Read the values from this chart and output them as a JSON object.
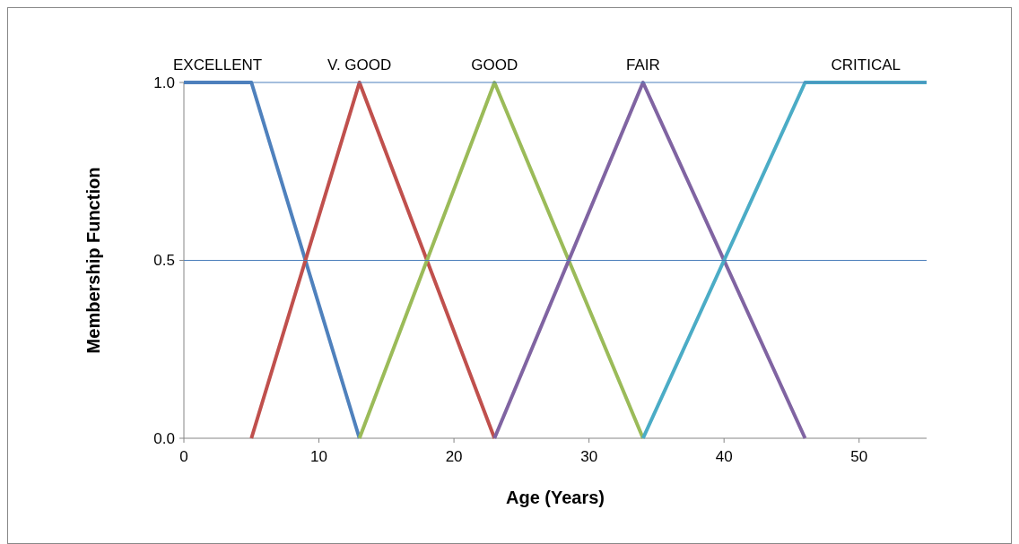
{
  "chart_data": {
    "type": "line",
    "xlabel": "Age (Years)",
    "ylabel": "Membership Function",
    "xlim": [
      0,
      55
    ],
    "xticks": [
      0,
      10,
      20,
      30,
      40,
      50
    ],
    "ylim": [
      0,
      1
    ],
    "yticks": [
      {
        "value": 0,
        "label": "0.0"
      },
      {
        "value": 0.5,
        "label": "0.5"
      },
      {
        "value": 1,
        "label": "1.0"
      }
    ],
    "ref_lines": [
      {
        "axis": "y",
        "value": 0.5,
        "color": "#4a7ebb"
      },
      {
        "axis": "y",
        "value": 1,
        "color": "#4a7ebb"
      }
    ],
    "marker": "none",
    "line_style": "solid",
    "series": [
      {
        "name": "EXCELLENT",
        "color": "#4f81bd",
        "x": [
          0,
          5,
          13
        ],
        "values": [
          1,
          1,
          0
        ]
      },
      {
        "name": "V. GOOD",
        "color": "#c0504d",
        "x": [
          5,
          13,
          23
        ],
        "values": [
          0,
          1,
          0
        ]
      },
      {
        "name": "GOOD",
        "color": "#9bbb59",
        "x": [
          13,
          23,
          34
        ],
        "values": [
          0,
          1,
          0
        ]
      },
      {
        "name": "FAIR",
        "color": "#8064a2",
        "x": [
          23,
          34,
          46
        ],
        "values": [
          0,
          1,
          0
        ]
      },
      {
        "name": "CRITICAL",
        "color": "#4bacc6",
        "x": [
          34,
          46,
          55
        ],
        "values": [
          0,
          1,
          1
        ]
      }
    ]
  }
}
